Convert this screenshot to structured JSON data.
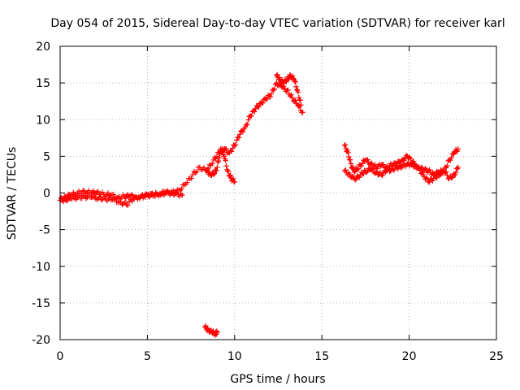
{
  "chart_data": {
    "type": "scatter",
    "title": "Day 054 of 2015, Sidereal Day-to-day VTEC variation (SDTVAR) for receiver karl",
    "xlabel": "GPS time / hours",
    "ylabel": "SDTVAR / TECUs",
    "xlim": [
      0,
      25
    ],
    "ylim": [
      -20,
      20
    ],
    "xticks": [
      0,
      5,
      10,
      15,
      20,
      25
    ],
    "yticks": [
      -20,
      -15,
      -10,
      -5,
      0,
      5,
      10,
      15,
      20
    ],
    "xtick_labels": [
      "0",
      "5",
      "10",
      "15",
      "20",
      "25"
    ],
    "ytick_labels": [
      "-20",
      "-15",
      "-10",
      "-5",
      "0",
      "5",
      "10",
      "15",
      "20"
    ],
    "grid": true,
    "marker": "plus",
    "color": "#ff0000",
    "series": [
      {
        "name": "SDTVAR",
        "segments": [
          {
            "x": [
              0.0,
              0.3,
              0.6,
              1.0,
              1.4,
              1.8,
              2.1,
              2.5,
              2.9,
              3.3,
              3.7,
              4.0,
              4.4,
              4.8,
              5.2,
              5.6,
              6.0,
              6.4,
              6.8,
              7.2,
              7.6,
              8.0,
              8.4,
              8.8,
              9.1,
              9.4,
              9.7,
              10.0,
              10.3,
              10.6,
              10.9,
              11.2,
              11.5,
              11.8,
              12.1,
              12.4,
              12.7,
              13.0,
              13.3,
              13.6,
              13.9
            ],
            "y": [
              -1.0,
              -0.5,
              -0.3,
              0.0,
              0.2,
              0.0,
              0.1,
              -0.2,
              -0.3,
              -0.6,
              -0.5,
              -0.4,
              -0.6,
              -0.4,
              -0.3,
              -0.2,
              0.1,
              0.0,
              0.4,
              1.2,
              2.5,
              3.5,
              3.0,
              4.5,
              5.5,
              6.0,
              5.5,
              6.5,
              8.0,
              9.0,
              10.5,
              11.5,
              12.3,
              12.8,
              13.5,
              15.0,
              14.5,
              14.0,
              13.0,
              12.0,
              11.0
            ]
          },
          {
            "x": [
              0.0,
              0.3,
              0.6,
              1.0,
              1.4,
              1.8,
              2.2,
              2.6,
              3.0,
              3.4,
              3.8,
              4.2,
              4.6,
              5.0,
              5.4,
              5.8,
              6.2,
              6.6,
              7.0
            ],
            "y": [
              -1.0,
              -0.9,
              -0.8,
              -0.6,
              -0.5,
              -0.6,
              -0.7,
              -0.8,
              -0.9,
              -1.2,
              -1.6,
              -0.8,
              -0.5,
              -0.3,
              -0.2,
              -0.1,
              0.0,
              -0.1,
              -0.3
            ]
          },
          {
            "x": [
              8.4,
              8.6,
              8.8,
              9.0,
              9.2,
              9.4,
              9.6,
              9.8,
              10.0
            ],
            "y": [
              3.0,
              2.6,
              2.5,
              3.5,
              6.0,
              5.0,
              3.0,
              2.0,
              1.5
            ]
          },
          {
            "x": [
              12.4,
              12.6,
              12.8,
              13.0,
              13.2,
              13.4,
              13.6,
              13.8
            ],
            "y": [
              16.0,
              15.5,
              15.0,
              15.5,
              16.0,
              15.5,
              14.0,
              12.0
            ]
          },
          {
            "x": [
              8.3,
              8.5,
              8.7,
              8.9,
              9.0
            ],
            "y": [
              -18.3,
              -18.7,
              -19.0,
              -19.2,
              -19.0
            ]
          },
          {
            "x": [
              16.3,
              16.5,
              16.7,
              16.9,
              17.2,
              17.5,
              17.8,
              18.1,
              18.4,
              18.7,
              19.0,
              19.3,
              19.6,
              19.9,
              20.2,
              20.5,
              20.8,
              21.1,
              21.4,
              21.7,
              22.0,
              22.3,
              22.6,
              22.8
            ],
            "y": [
              6.5,
              5.5,
              3.5,
              3.0,
              3.8,
              4.5,
              4.0,
              3.5,
              3.8,
              3.5,
              3.8,
              4.0,
              4.5,
              5.0,
              4.2,
              3.5,
              3.2,
              3.0,
              2.6,
              2.8,
              3.0,
              4.5,
              5.5,
              6.0
            ]
          },
          {
            "x": [
              16.3,
              16.6,
              16.9,
              17.2,
              17.5,
              17.8,
              18.1,
              18.4,
              18.7,
              19.0,
              19.3,
              19.6,
              19.9,
              20.2,
              20.5,
              20.8,
              21.1,
              21.4,
              21.7,
              22.0,
              22.3,
              22.6,
              22.8
            ],
            "y": [
              3.0,
              2.5,
              1.8,
              2.5,
              3.0,
              3.2,
              2.8,
              2.5,
              3.0,
              3.2,
              3.5,
              3.6,
              4.0,
              3.8,
              3.5,
              2.5,
              1.5,
              2.0,
              2.5,
              3.0,
              2.0,
              2.5,
              3.5
            ]
          }
        ]
      }
    ]
  }
}
